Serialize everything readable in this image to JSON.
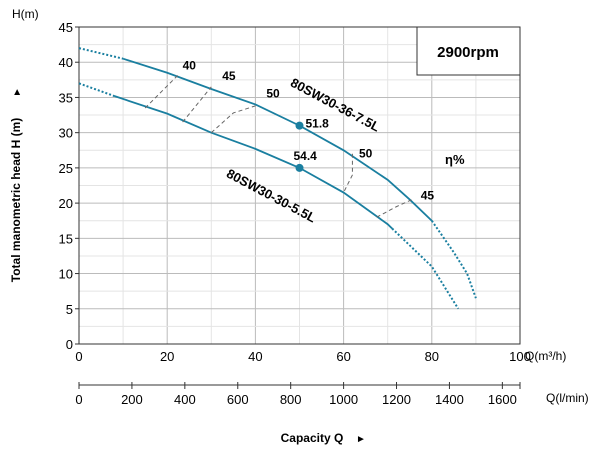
{
  "chart_data": {
    "type": "line",
    "title": "",
    "speed_label": "2900rpm",
    "ylabel": "Total manometric head H (m)",
    "ylabel_arrow": "►",
    "y_unit": "H(m)",
    "xlabel": "Capacity Q",
    "xlabel_arrow": "►",
    "x_unit": "Q(m³/h)",
    "x2_unit": "Q(l/min)",
    "xlim": [
      0,
      100
    ],
    "ylim": [
      0,
      45
    ],
    "x_ticks": [
      0,
      20,
      40,
      60,
      80,
      100
    ],
    "y_ticks": [
      0,
      5,
      10,
      15,
      20,
      25,
      30,
      35,
      40,
      45
    ],
    "x2_ticks": [
      0,
      200,
      400,
      600,
      800,
      1000,
      1200,
      1400,
      1600
    ],
    "grid": true,
    "efficiency_label": "η%",
    "color": "#1a7fa0",
    "series": [
      {
        "name": "80SW30-36-7.5L",
        "x": [
          0,
          10,
          20,
          30,
          40,
          50,
          60,
          70,
          75,
          80,
          85,
          88,
          90
        ],
        "y": [
          42,
          40.5,
          38.5,
          36.2,
          34,
          31,
          27.5,
          23.3,
          20.5,
          17.5,
          13,
          10,
          6.5
        ],
        "solid_range": [
          10,
          80
        ],
        "bep": {
          "x": 50,
          "y": 31,
          "label": "51.8"
        }
      },
      {
        "name": "80SW30-30-5.5L",
        "x": [
          0,
          8,
          20,
          30,
          40,
          50,
          60,
          70,
          80,
          86
        ],
        "y": [
          37,
          35.2,
          32.7,
          30,
          27.7,
          25,
          21.5,
          17,
          11,
          5
        ],
        "solid_range": [
          8,
          71
        ],
        "bep": {
          "x": 50,
          "y": 25,
          "label": "54.4"
        }
      }
    ],
    "efficiency_lines": [
      {
        "label": "40",
        "points": [
          [
            15,
            33.5
          ],
          [
            22.5,
            38.2
          ]
        ],
        "label_at": [
          25,
          39
        ]
      },
      {
        "label": "45",
        "points": [
          [
            23.5,
            31.5
          ],
          [
            30,
            36.5
          ]
        ],
        "label_at": [
          34,
          37.5
        ]
      },
      {
        "label": "50",
        "points": [
          [
            30,
            30
          ],
          [
            35,
            32.8
          ],
          [
            40,
            33.8
          ]
        ],
        "label_at": [
          44,
          35
        ]
      },
      {
        "label": "50",
        "points": [
          [
            62,
            27
          ],
          [
            62,
            24
          ],
          [
            60,
            21.5
          ]
        ],
        "label_at": [
          65,
          26.5
        ]
      },
      {
        "label": "45",
        "points": [
          [
            67.5,
            18
          ],
          [
            72,
            19.5
          ],
          [
            75.5,
            20.5
          ]
        ],
        "label_at": [
          79,
          20.5
        ]
      }
    ]
  }
}
